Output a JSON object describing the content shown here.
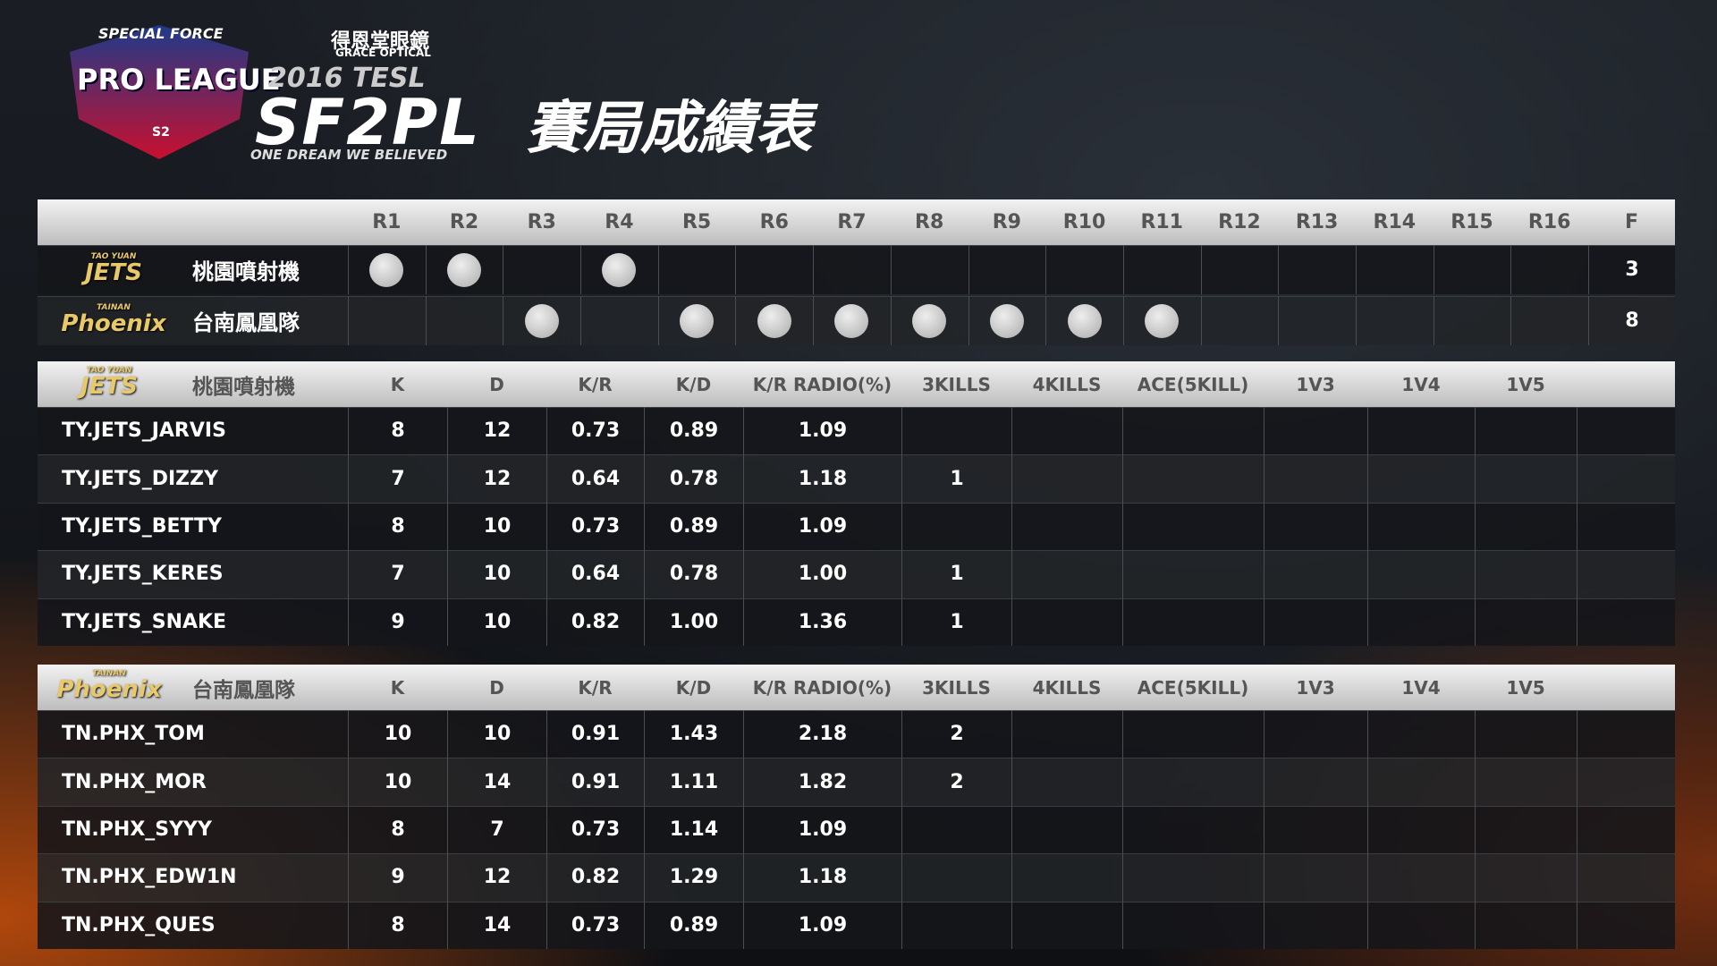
{
  "header": {
    "league_logo": {
      "top": "SPECIAL FORCE",
      "main": "PRO LEAGUE",
      "season": "S2"
    },
    "sponsor": {
      "name": "得恩堂眼鏡",
      "english": "GRACE OPTICAL"
    },
    "event": "2016 TESL",
    "brand": "SF2PL",
    "slogan": "ONE DREAM WE BELIEVED",
    "title": "賽局成績表"
  },
  "rounds": {
    "columns": [
      "R1",
      "R2",
      "R3",
      "R4",
      "R5",
      "R6",
      "R7",
      "R8",
      "R9",
      "R10",
      "R11",
      "R12",
      "R13",
      "R14",
      "R15",
      "R16"
    ],
    "final_label": "F",
    "teams": [
      {
        "logo": "JETS",
        "logo_caption": "TAO YUAN",
        "name": "桃園噴射機",
        "wins": [
          true,
          true,
          false,
          true,
          false,
          false,
          false,
          false,
          false,
          false,
          false,
          false,
          false,
          false,
          false,
          false
        ],
        "final": 3
      },
      {
        "logo": "Phoenix",
        "logo_caption": "TAINAN",
        "name": "台南鳳凰隊",
        "wins": [
          false,
          false,
          true,
          false,
          true,
          true,
          true,
          true,
          true,
          true,
          true,
          false,
          false,
          false,
          false,
          false
        ],
        "final": 8
      }
    ]
  },
  "stats": [
    {
      "logo": "JETS",
      "logo_caption": "TAO YUAN",
      "team": "桃園噴射機",
      "columns": [
        "K",
        "D",
        "K/R",
        "K/D",
        "K/R RADIO(%)",
        "3KILLS",
        "4KILLS",
        "ACE(5KILL)",
        "1V3",
        "1V4",
        "1V5"
      ],
      "rows": [
        [
          "TY.JETS_JARVIS",
          "8",
          "12",
          "0.73",
          "0.89",
          "1.09",
          null,
          null,
          null,
          null,
          null,
          null
        ],
        [
          "TY.JETS_DIZZY",
          "7",
          "12",
          "0.64",
          "0.78",
          "1.18",
          "1",
          null,
          null,
          null,
          null,
          null
        ],
        [
          "TY.JETS_BETTY",
          "8",
          "10",
          "0.73",
          "0.89",
          "1.09",
          null,
          null,
          null,
          null,
          null,
          null
        ],
        [
          "TY.JETS_KERES",
          "7",
          "10",
          "0.64",
          "0.78",
          "1.00",
          "1",
          null,
          null,
          null,
          null,
          null
        ],
        [
          "TY.JETS_SNAKE",
          "9",
          "10",
          "0.82",
          "1.00",
          "1.36",
          "1",
          null,
          null,
          null,
          null,
          null
        ]
      ]
    },
    {
      "logo": "Phoenix",
      "logo_caption": "TAINAN",
      "team": "台南鳳凰隊",
      "columns": [
        "K",
        "D",
        "K/R",
        "K/D",
        "K/R RADIO(%)",
        "3KILLS",
        "4KILLS",
        "ACE(5KILL)",
        "1V3",
        "1V4",
        "1V5"
      ],
      "rows": [
        [
          "TN.PHX_TOM",
          "10",
          "10",
          "0.91",
          "1.43",
          "2.18",
          "2",
          null,
          null,
          null,
          null,
          null
        ],
        [
          "TN.PHX_MOR",
          "10",
          "14",
          "0.91",
          "1.11",
          "1.82",
          "2",
          null,
          null,
          null,
          null,
          null
        ],
        [
          "TN.PHX_SYYY",
          "8",
          "7",
          "0.73",
          "1.14",
          "1.09",
          null,
          null,
          null,
          null,
          null,
          null
        ],
        [
          "TN.PHX_EDW1N",
          "9",
          "12",
          "0.82",
          "1.29",
          "1.18",
          null,
          null,
          null,
          null,
          null,
          null
        ],
        [
          "TN.PHX_QUES",
          "8",
          "14",
          "0.73",
          "0.89",
          "1.09",
          null,
          null,
          null,
          null,
          null,
          null
        ]
      ]
    }
  ]
}
